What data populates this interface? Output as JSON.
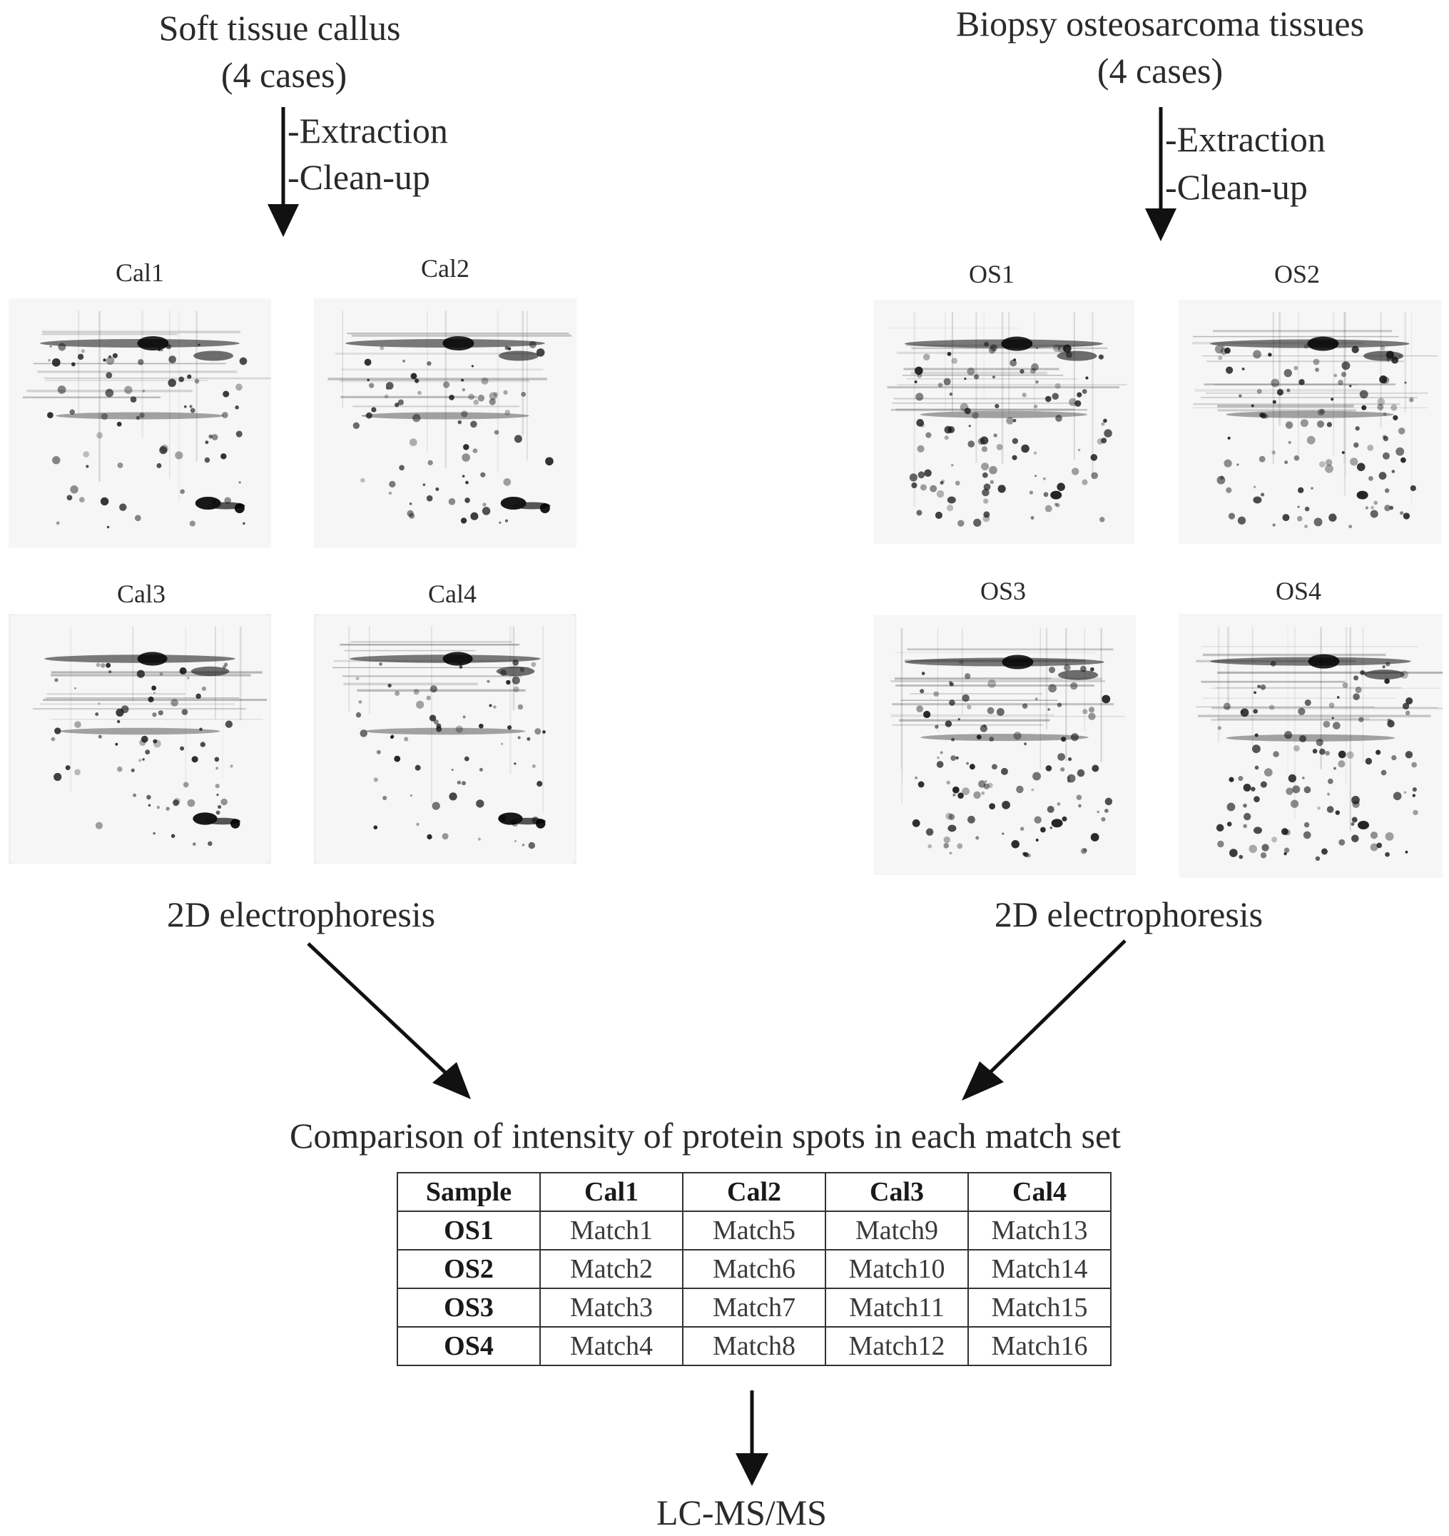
{
  "left_group": {
    "title_line1": "Soft tissue callus",
    "title_line2": "(4 cases)",
    "step1": "-Extraction",
    "step2": "-Clean-up",
    "gels": [
      "Cal1",
      "Cal2",
      "Cal3",
      "Cal4"
    ],
    "method": "2D electrophoresis"
  },
  "right_group": {
    "title_line1": "Biopsy osteosarcoma tissues",
    "title_line2": "(4 cases)",
    "step1": "-Extraction",
    "step2": "-Clean-up",
    "gels": [
      "OS1",
      "OS2",
      "OS3",
      "OS4"
    ],
    "method": "2D electrophoresis"
  },
  "comparison_title": "Comparison of intensity of protein spots in each match set",
  "table": {
    "headers": [
      "Sample",
      "Cal1",
      "Cal2",
      "Cal3",
      "Cal4"
    ],
    "rows": [
      [
        "OS1",
        "Match1",
        "Match5",
        "Match9",
        "Match13"
      ],
      [
        "OS2",
        "Match2",
        "Match6",
        "Match10",
        "Match14"
      ],
      [
        "OS3",
        "Match3",
        "Match7",
        "Match11",
        "Match15"
      ],
      [
        "OS4",
        "Match4",
        "Match8",
        "Match12",
        "Match16"
      ]
    ]
  },
  "final_step": "LC-MS/MS"
}
